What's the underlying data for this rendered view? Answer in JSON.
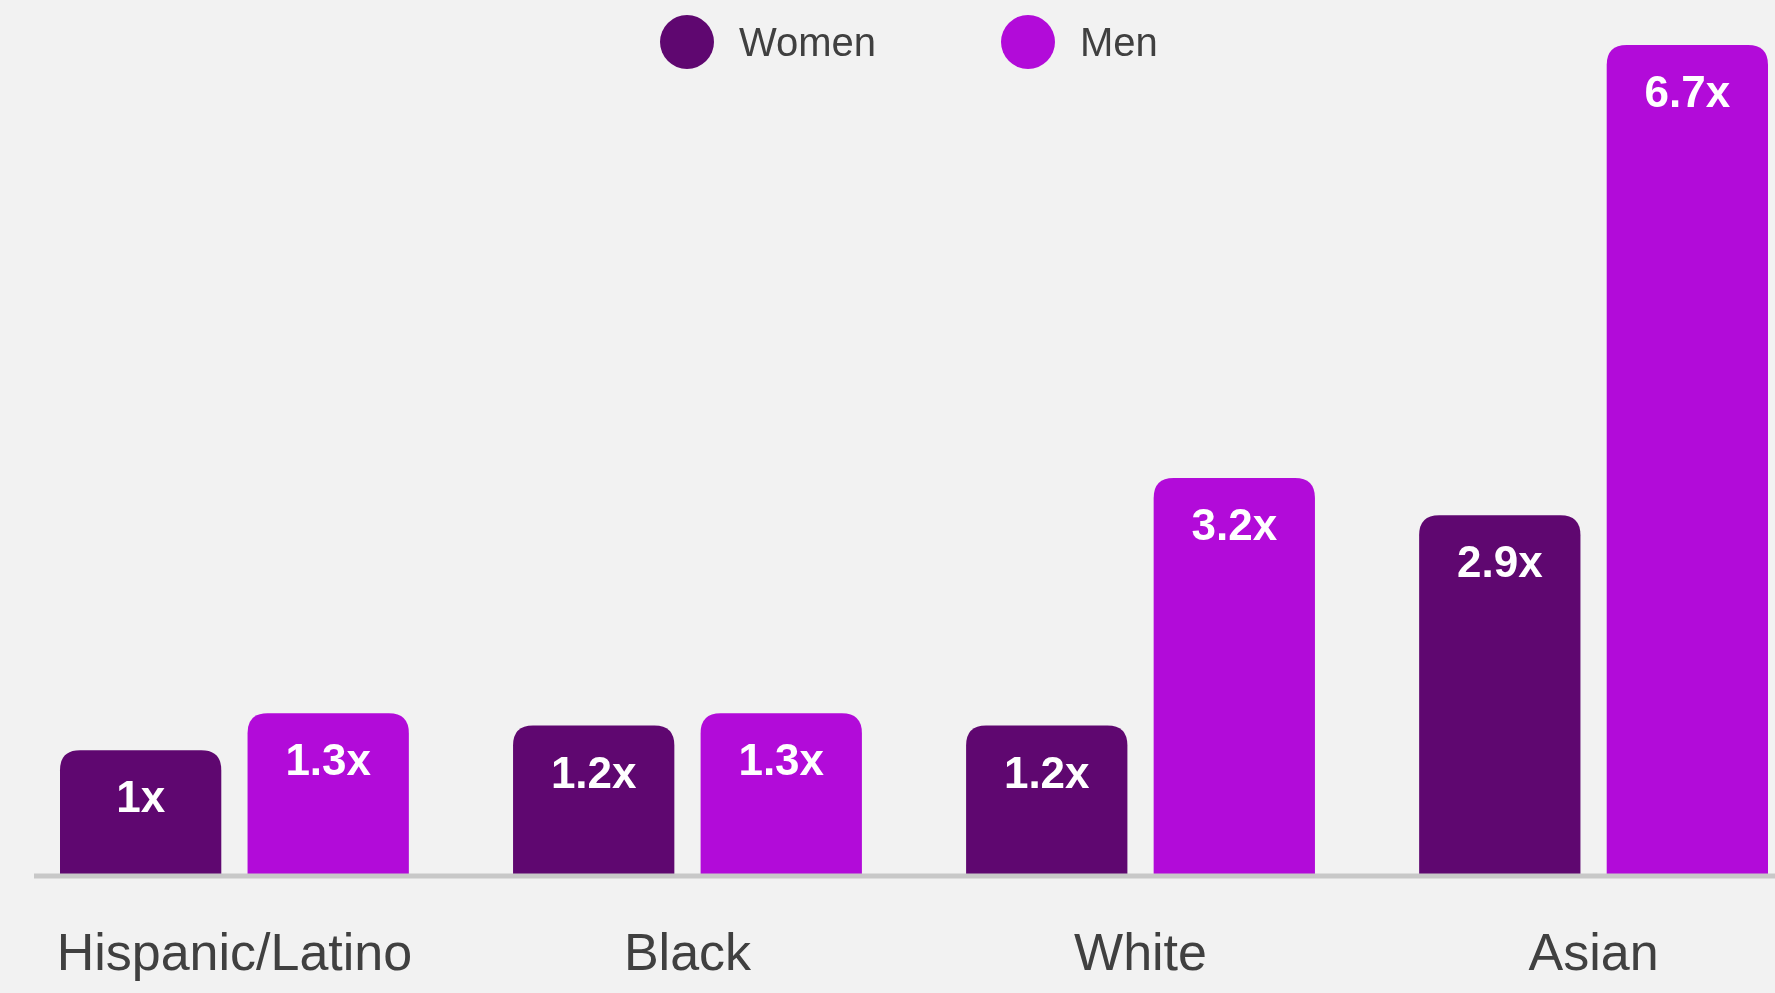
{
  "chart_data": {
    "type": "bar",
    "categories": [
      "Hispanic/Latino",
      "Black",
      "White",
      "Asian"
    ],
    "series": [
      {
        "name": "Women",
        "color": "#5f0770",
        "values": [
          1,
          1.2,
          1.2,
          2.9
        ],
        "value_labels": [
          "1x",
          "1.2x",
          "1.2x",
          "2.9x"
        ]
      },
      {
        "name": "Men",
        "color": "#b20bd9",
        "values": [
          1.3,
          1.3,
          3.2,
          6.7
        ],
        "value_labels": [
          "1.3x",
          "1.3x",
          "3.2x",
          "6.7x"
        ]
      }
    ],
    "legend": "top",
    "tick_labels": "x"
  }
}
